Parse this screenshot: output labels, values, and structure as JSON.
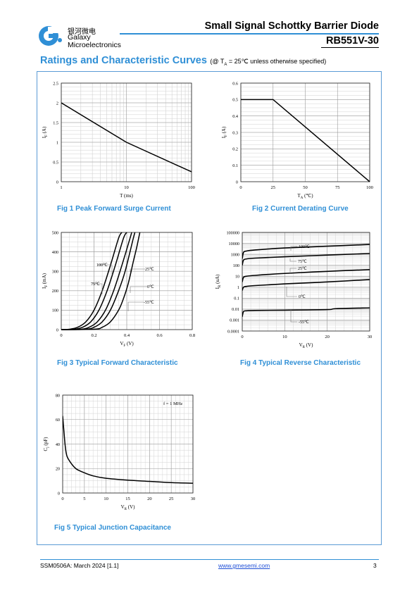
{
  "header": {
    "logo_cn": "银河微电",
    "logo_en1": "Galaxy",
    "logo_en2": "Microelectronics",
    "title": "Small Signal Schottky Barrier Diode",
    "part": "RB551V-30",
    "brand_color": "#2f8fd6"
  },
  "section": {
    "title": "Ratings and Characteristic Curves",
    "subtitle": "(@ T",
    "subtitle_sub": "A",
    "subtitle_rest": " = 25℃ unless otherwise specified)"
  },
  "captions": {
    "fig1": "Fig 1    Peak Forward Surge Current",
    "fig2": "Fig 2    Current Derating Curve",
    "fig3": "Fig 3    Typical Forward Characteristic",
    "fig4": "Fig 4    Typical Reverse Characteristic",
    "fig5": "Fig 5    Typical Junction Capacitance"
  },
  "footer": {
    "doc": "SSM0506A: March 2024 [1.1]",
    "url": "www.gmesemi.com",
    "page": "3"
  },
  "chart_data": [
    {
      "id": "fig1",
      "type": "line",
      "xscale": "log",
      "xlabel": "T (ms)",
      "ylabel": "I_F (A)",
      "xlim": [
        1,
        100
      ],
      "ylim": [
        0,
        2.5
      ],
      "xticks": [
        1,
        10,
        100
      ],
      "xtick_labels": [
        "1",
        "10",
        "100"
      ],
      "yticks": [
        0,
        0.5,
        1,
        1.5,
        2,
        2.5
      ],
      "ytick_labels": [
        "0",
        "0.5",
        "1",
        "1.5",
        "2",
        "2.5"
      ],
      "grid": true,
      "series": [
        {
          "x": [
            1,
            10,
            100
          ],
          "y": [
            2.0,
            1.0,
            0.25
          ]
        }
      ]
    },
    {
      "id": "fig2",
      "type": "line",
      "xlabel": "T_A (℃)",
      "ylabel": "I_F (A)",
      "xlim": [
        0,
        100
      ],
      "ylim": [
        0,
        0.6
      ],
      "xticks": [
        0,
        25,
        50,
        75,
        100
      ],
      "xtick_labels": [
        "0",
        "25",
        "50",
        "75",
        "100"
      ],
      "yticks": [
        0,
        0.1,
        0.2,
        0.3,
        0.4,
        0.5,
        0.6
      ],
      "ytick_labels": [
        "0",
        "0.1",
        "0.2",
        "0.3",
        "0.4",
        "0.5",
        "0.6"
      ],
      "grid": true,
      "series": [
        {
          "x": [
            0,
            25,
            100
          ],
          "y": [
            0.5,
            0.5,
            0
          ]
        }
      ]
    },
    {
      "id": "fig3",
      "type": "line",
      "xlabel": "V_F (V)",
      "ylabel": "I_F (mA)",
      "xlim": [
        0,
        0.8
      ],
      "ylim": [
        0,
        500
      ],
      "xticks": [
        0,
        0.2,
        0.4,
        0.6,
        0.8
      ],
      "xtick_labels": [
        "0",
        "0.2",
        "0.4",
        "0.6",
        "0.8"
      ],
      "yticks": [
        0,
        100,
        200,
        300,
        400,
        500
      ],
      "ytick_labels": [
        "0",
        "100",
        "200",
        "300",
        "400",
        "500"
      ],
      "grid": true,
      "series": [
        {
          "name": "100℃",
          "x": [
            0.0,
            0.05,
            0.1,
            0.15,
            0.2,
            0.25,
            0.3,
            0.35,
            0.37
          ],
          "y": [
            0,
            2,
            12,
            40,
            100,
            200,
            330,
            470,
            500
          ]
        },
        {
          "name": "75℃",
          "x": [
            0.0,
            0.08,
            0.13,
            0.18,
            0.23,
            0.28,
            0.33,
            0.38,
            0.4
          ],
          "y": [
            0,
            2,
            12,
            40,
            100,
            200,
            330,
            470,
            500
          ]
        },
        {
          "name": "25℃",
          "x": [
            0.0,
            0.12,
            0.17,
            0.22,
            0.27,
            0.32,
            0.37,
            0.42,
            0.43
          ],
          "y": [
            0,
            2,
            12,
            40,
            100,
            200,
            330,
            470,
            500
          ]
        },
        {
          "name": "0℃",
          "x": [
            0.0,
            0.15,
            0.2,
            0.25,
            0.3,
            0.35,
            0.39,
            0.44,
            0.45
          ],
          "y": [
            0,
            2,
            12,
            40,
            100,
            200,
            300,
            470,
            500
          ]
        },
        {
          "name": "-55℃",
          "x": [
            0.0,
            0.2,
            0.25,
            0.3,
            0.35,
            0.38,
            0.41,
            0.44,
            0.46,
            0.48
          ],
          "y": [
            0,
            2,
            12,
            40,
            100,
            160,
            240,
            350,
            420,
            500
          ]
        }
      ],
      "annotations": [
        "100℃",
        "75℃",
        "25℃",
        "0℃",
        "-55℃"
      ]
    },
    {
      "id": "fig4",
      "type": "line",
      "yscale": "log",
      "xlabel": "V_R (V)",
      "ylabel": "I_R (uA)",
      "xlim": [
        0,
        30
      ],
      "ylim": [
        0.0001,
        100000
      ],
      "xticks": [
        0,
        10,
        20,
        30
      ],
      "xtick_labels": [
        "0",
        "10",
        "20",
        "30"
      ],
      "yticks": [
        0.0001,
        0.001,
        0.01,
        0.1,
        1,
        10,
        100,
        1000,
        10000,
        100000
      ],
      "ytick_labels": [
        "0.0001",
        "0.001",
        "0.01",
        "0.1",
        "1",
        "10",
        "100",
        "1000",
        "10000",
        "100000"
      ],
      "grid": true,
      "series": [
        {
          "name": "100℃",
          "x": [
            0,
            0.3,
            1,
            3,
            10,
            20,
            30
          ],
          "y": [
            400,
            1500,
            2000,
            2500,
            3800,
            5500,
            8000
          ]
        },
        {
          "name": "75℃",
          "x": [
            0,
            0.3,
            1,
            3,
            10,
            20,
            30
          ],
          "y": [
            100,
            300,
            380,
            450,
            600,
            850,
            1200
          ]
        },
        {
          "name": "25℃",
          "x": [
            0,
            0.3,
            1,
            3,
            10,
            20,
            30
          ],
          "y": [
            3,
            8,
            10,
            12,
            18,
            28,
            40
          ]
        },
        {
          "name": "0℃",
          "x": [
            0,
            0.3,
            1,
            3,
            10,
            20,
            30
          ],
          "y": [
            0.5,
            1,
            1.2,
            1.4,
            2,
            3,
            5
          ]
        },
        {
          "name": "-55℃",
          "x": [
            0,
            0.3,
            1,
            3,
            10,
            20,
            22,
            30
          ],
          "y": [
            0.002,
            0.006,
            0.007,
            0.0075,
            0.008,
            0.009,
            0.011,
            0.013
          ]
        }
      ],
      "annotations": [
        "100℃",
        "75℃",
        "25℃",
        "0℃",
        "-55℃"
      ]
    },
    {
      "id": "fig5",
      "type": "line",
      "xlabel": "V_R (V)",
      "ylabel": "C_j (pF)",
      "xlim": [
        0,
        30
      ],
      "ylim": [
        0,
        80
      ],
      "xticks": [
        0,
        5,
        10,
        15,
        20,
        25,
        30
      ],
      "xtick_labels": [
        "0",
        "5",
        "10",
        "15",
        "20",
        "25",
        "30"
      ],
      "yticks": [
        0,
        20,
        40,
        60,
        80
      ],
      "ytick_labels": [
        "0",
        "20",
        "40",
        "60",
        "80"
      ],
      "grid": true,
      "series": [
        {
          "x": [
            0,
            0.3,
            0.6,
            1,
            2,
            3,
            4,
            5,
            7,
            10,
            15,
            20,
            25,
            30
          ],
          "y": [
            63,
            50,
            38,
            30,
            24,
            20,
            18,
            16.5,
            14,
            12,
            10.5,
            9.5,
            8.5,
            8
          ]
        }
      ],
      "annotations": [
        "f = 1 MHz"
      ]
    }
  ]
}
